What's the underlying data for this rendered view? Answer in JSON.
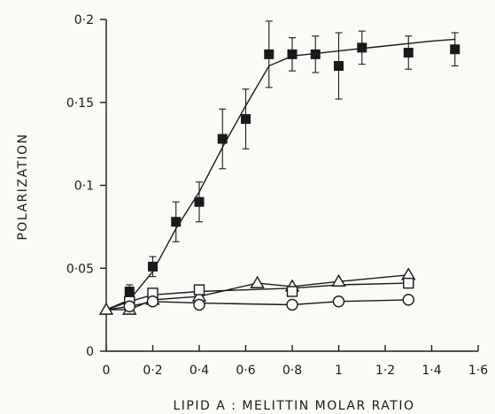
{
  "chart_data": {
    "type": "scatter",
    "title": "",
    "xlabel": "LIPID A : MELITTIN MOLAR RATIO",
    "ylabel": "POLARIZATION",
    "xlim": [
      0,
      1.6
    ],
    "ylim": [
      0,
      0.2
    ],
    "x_ticks": [
      0,
      0.2,
      0.4,
      0.6,
      0.8,
      1,
      1.2,
      1.4,
      1.6
    ],
    "x_tick_labels": [
      "0",
      "0·2",
      "0·4",
      "0·6",
      "0·8",
      "1",
      "1·2",
      "1·4",
      "1·6"
    ],
    "y_ticks": [
      0,
      0.05,
      0.1,
      0.15,
      0.2
    ],
    "y_tick_labels": [
      "0",
      "0·05",
      "0·1",
      "0·15",
      "0·2"
    ],
    "grid": false,
    "legend": "none",
    "series": [
      {
        "marker": "filled-square",
        "x": [
          0.1,
          0.2,
          0.3,
          0.4,
          0.5,
          0.6,
          0.7,
          0.8,
          0.9,
          1.0,
          1.1,
          1.3,
          1.5
        ],
        "y": [
          0.036,
          0.051,
          0.078,
          0.09,
          0.128,
          0.14,
          0.179,
          0.179,
          0.179,
          0.172,
          0.183,
          0.18,
          0.182
        ],
        "error": [
          0.004,
          0.006,
          0.012,
          0.012,
          0.018,
          0.018,
          0.02,
          0.01,
          0.011,
          0.02,
          0.01,
          0.01,
          0.01
        ],
        "fit_line": [
          [
            0,
            0.025
          ],
          [
            0.1,
            0.031
          ],
          [
            0.2,
            0.048
          ],
          [
            0.3,
            0.074
          ],
          [
            0.4,
            0.096
          ],
          [
            0.5,
            0.123
          ],
          [
            0.6,
            0.148
          ],
          [
            0.7,
            0.172
          ],
          [
            0.8,
            0.178
          ],
          [
            1.0,
            0.181
          ],
          [
            1.2,
            0.184
          ],
          [
            1.4,
            0.187
          ],
          [
            1.5,
            0.188
          ]
        ]
      },
      {
        "marker": "open-triangle",
        "x": [
          0,
          0.1,
          0.2,
          0.4,
          0.65,
          0.8,
          1.0,
          1.3
        ],
        "y": [
          0.025,
          0.025,
          0.031,
          0.033,
          0.041,
          0.039,
          0.042,
          0.046
        ],
        "line": [
          [
            0,
            0.025
          ],
          [
            0.1,
            0.025
          ],
          [
            0.2,
            0.031
          ],
          [
            0.4,
            0.033
          ],
          [
            0.65,
            0.041
          ],
          [
            0.8,
            0.039
          ],
          [
            1.0,
            0.042
          ],
          [
            1.3,
            0.046
          ]
        ]
      },
      {
        "marker": "open-square",
        "x": [
          0.1,
          0.2,
          0.4,
          0.8,
          1.3
        ],
        "y": [
          0.03,
          0.035,
          0.037,
          0.036,
          0.041
        ],
        "line": [
          [
            0,
            0.025
          ],
          [
            0.1,
            0.03
          ],
          [
            0.2,
            0.034
          ],
          [
            0.4,
            0.036
          ],
          [
            0.8,
            0.038
          ],
          [
            1.0,
            0.04
          ],
          [
            1.3,
            0.041
          ]
        ]
      },
      {
        "marker": "open-circle",
        "x": [
          0.1,
          0.2,
          0.4,
          0.8,
          1.0,
          1.3
        ],
        "y": [
          0.027,
          0.03,
          0.028,
          0.028,
          0.03,
          0.031
        ],
        "line": [
          [
            0,
            0.025
          ],
          [
            0.1,
            0.027
          ],
          [
            0.2,
            0.03
          ],
          [
            0.4,
            0.029
          ],
          [
            0.8,
            0.028
          ],
          [
            1.0,
            0.03
          ],
          [
            1.3,
            0.031
          ]
        ]
      }
    ]
  }
}
